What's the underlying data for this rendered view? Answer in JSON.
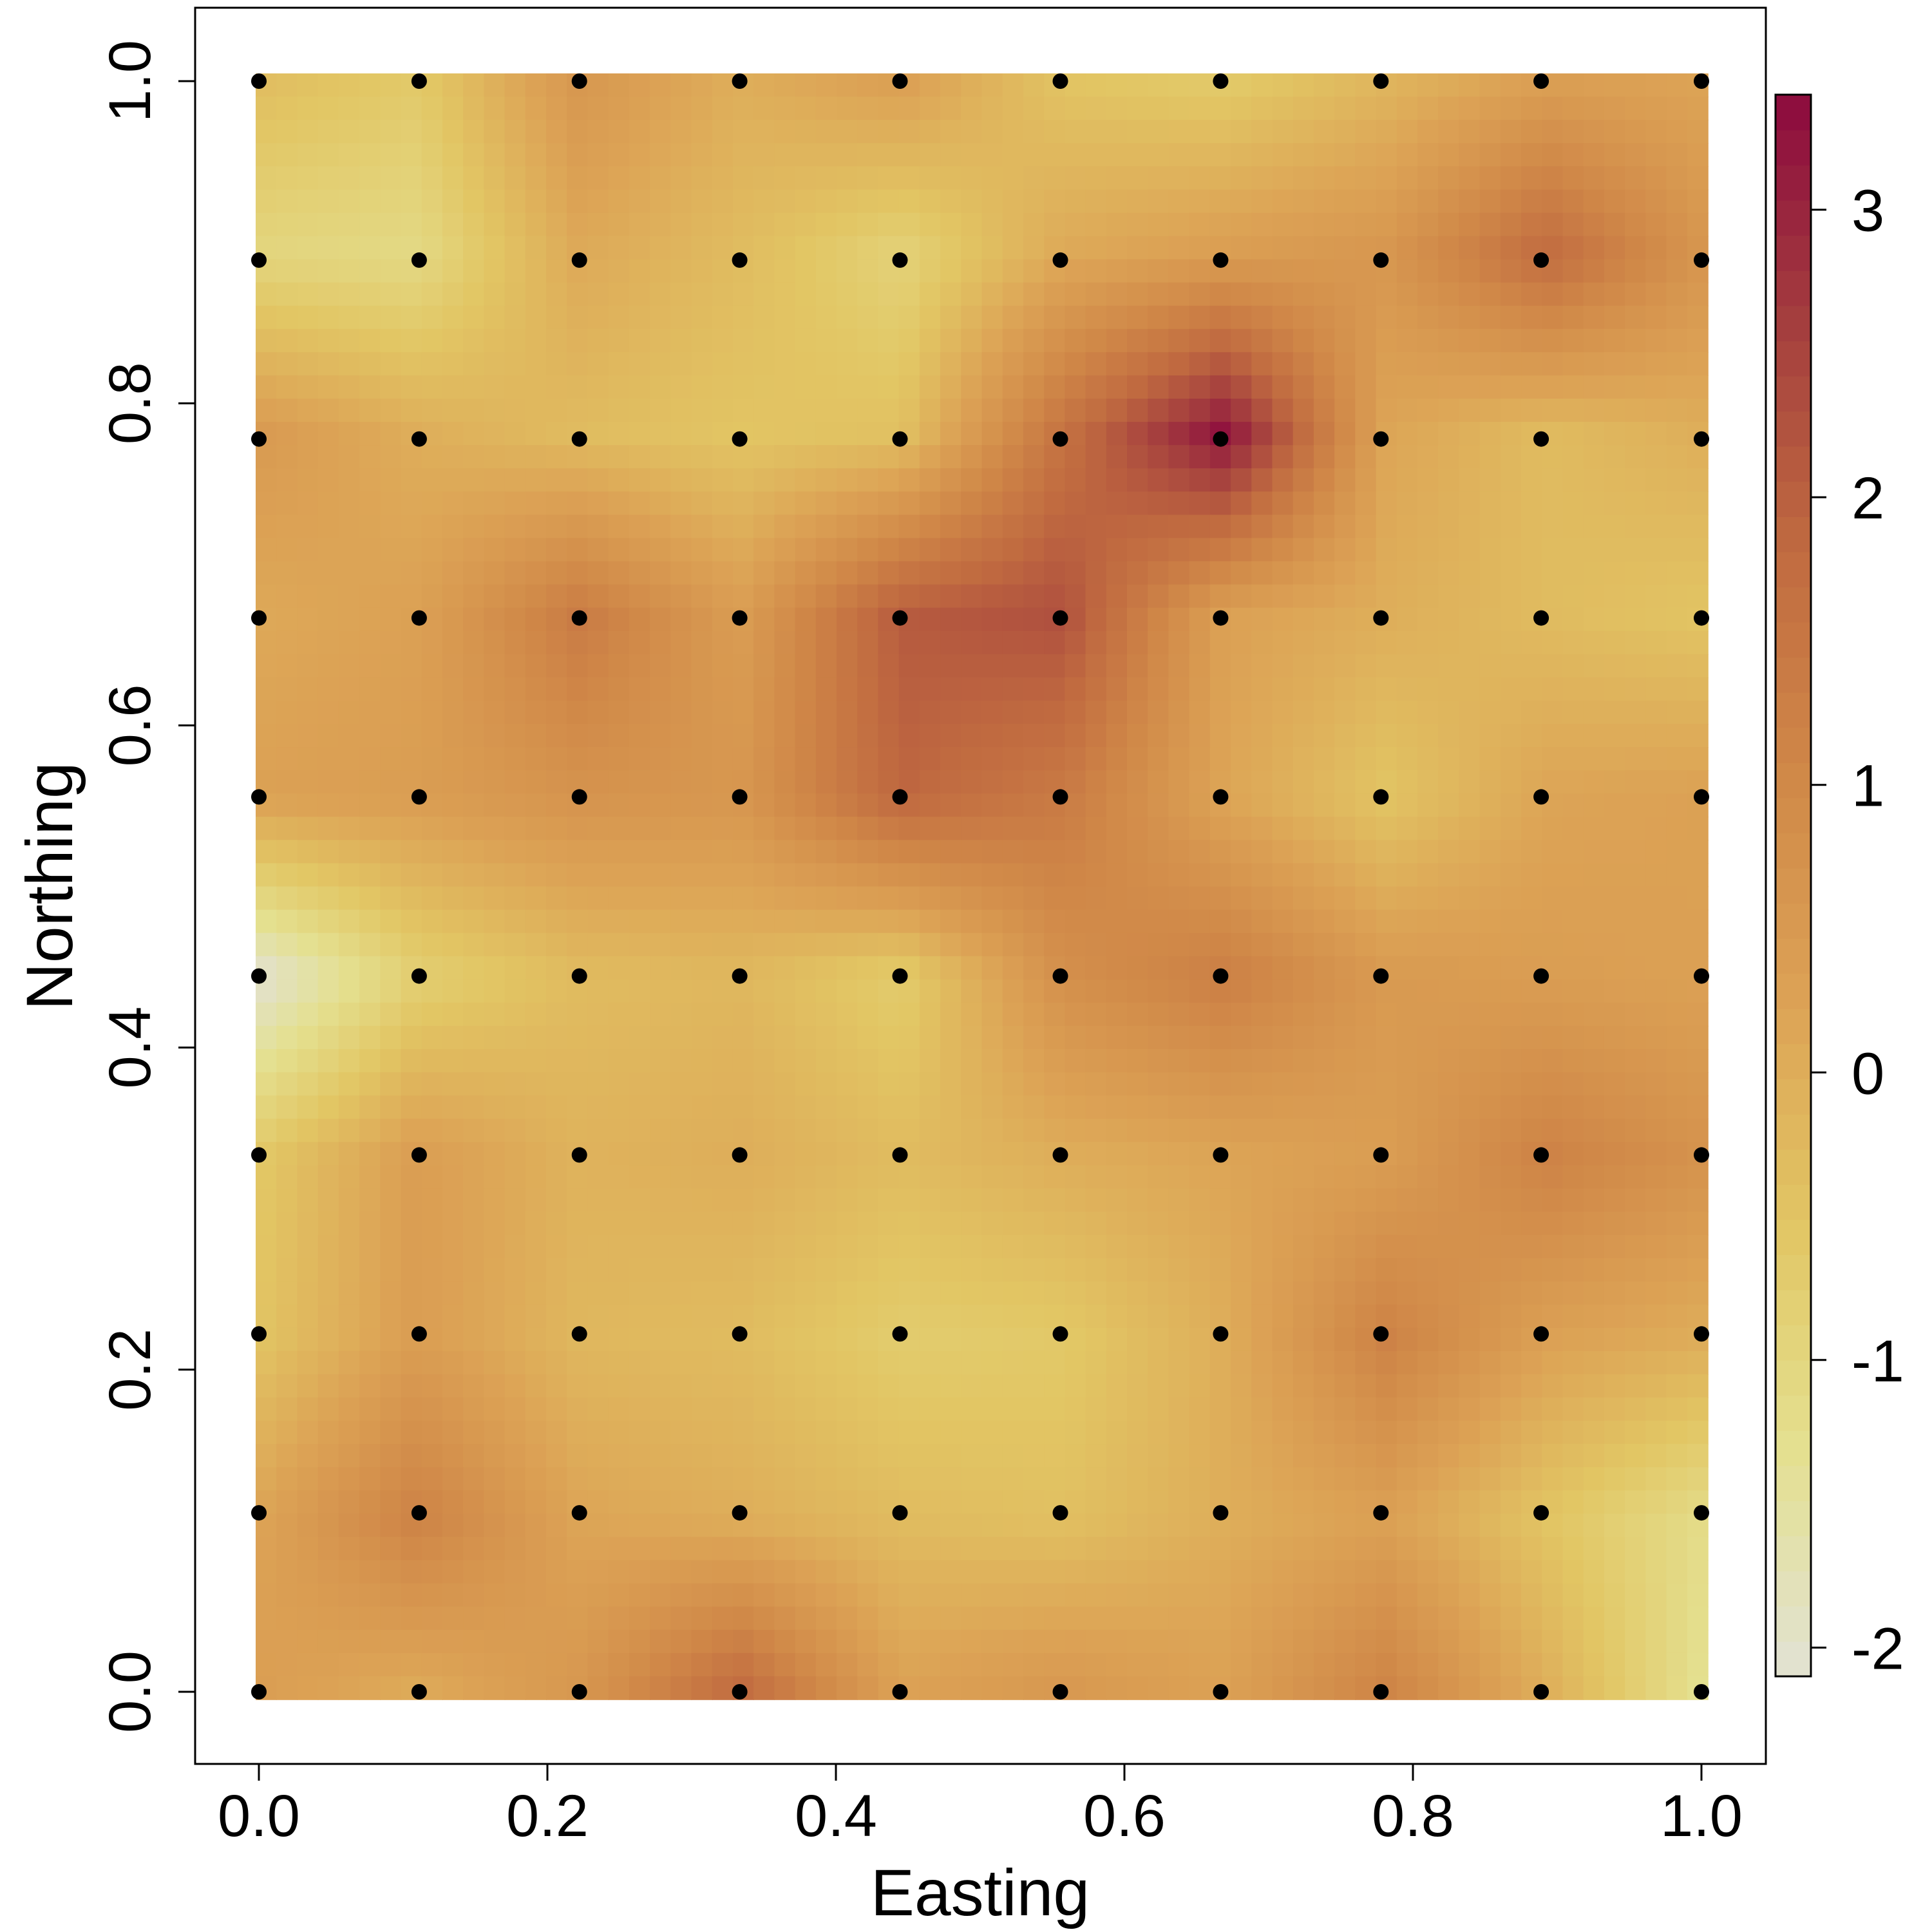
{
  "chart_data": {
    "type": "heatmap",
    "title": "",
    "xlabel": "Easting",
    "ylabel": "Northing",
    "xlim": [
      -0.04,
      1.04
    ],
    "ylim": [
      -0.04,
      1.04
    ],
    "x_ticks": [
      "0.0",
      "0.2",
      "0.4",
      "0.6",
      "0.8",
      "1.0"
    ],
    "y_ticks": [
      "0.0",
      "0.2",
      "0.4",
      "0.6",
      "0.8",
      "1.0"
    ],
    "x_tick_values": [
      0,
      0.2,
      0.4,
      0.6,
      0.8,
      1.0
    ],
    "y_tick_values": [
      0,
      0.2,
      0.4,
      0.6,
      0.8,
      1.0
    ],
    "grid": false,
    "colorbar": {
      "placement": "right",
      "range": [
        -2.1,
        3.4
      ],
      "ticks": [
        "-2",
        "-1",
        "0",
        "1",
        "2",
        "3"
      ],
      "tick_values": [
        -2,
        -1,
        0,
        1,
        2,
        3
      ],
      "colors": [
        "#e2e2d4",
        "#e4e090",
        "#e2c664",
        "#dca255",
        "#d08848",
        "#c06a40",
        "#a43e3e",
        "#8c0a3e"
      ]
    },
    "points": {
      "x": [
        0,
        0.1111,
        0.2222,
        0.3333,
        0.4444,
        0.5556,
        0.6667,
        0.7778,
        0.8889,
        1.0
      ],
      "y": [
        0,
        0.1111,
        0.2222,
        0.3333,
        0.4444,
        0.5556,
        0.6667,
        0.7778,
        0.8889,
        1.0
      ],
      "marker_color": "#000000"
    },
    "field_rows_bottom_to_top": [
      [
        0.4,
        0.0,
        0.6,
        1.9,
        0.3,
        0.6,
        0.3,
        1.2,
        0.0,
        -1.4
      ],
      [
        0.2,
        1.2,
        0.2,
        0.0,
        -0.3,
        -0.4,
        0.0,
        0.3,
        -0.5,
        -1.2
      ],
      [
        -0.5,
        0.4,
        -0.2,
        -0.3,
        -0.7,
        -0.6,
        0.0,
        1.2,
        0.3,
        0.0
      ],
      [
        -0.6,
        0.4,
        -0.1,
        0.0,
        -0.3,
        0.0,
        0.2,
        0.4,
        1.2,
        0.7
      ],
      [
        -2.1,
        -0.8,
        -0.3,
        -0.2,
        -0.7,
        0.8,
        1.3,
        0.5,
        0.4,
        0.3
      ],
      [
        0.3,
        0.4,
        0.7,
        0.6,
        1.9,
        1.4,
        0.2,
        -0.5,
        0.2,
        0.3
      ],
      [
        0.1,
        0.3,
        1.4,
        0.4,
        2.1,
        2.3,
        0.3,
        0.0,
        -0.3,
        -0.5
      ],
      [
        0.5,
        0.0,
        -0.3,
        -0.5,
        -0.4,
        1.6,
        3.3,
        0.2,
        -0.3,
        0.0
      ],
      [
        -1.0,
        -1.1,
        0.1,
        -0.3,
        -0.9,
        0.1,
        0.4,
        0.6,
        1.8,
        0.6
      ],
      [
        -0.3,
        -0.6,
        0.6,
        0.0,
        0.4,
        -0.5,
        -0.7,
        -0.2,
        0.3,
        0.2
      ]
    ]
  }
}
